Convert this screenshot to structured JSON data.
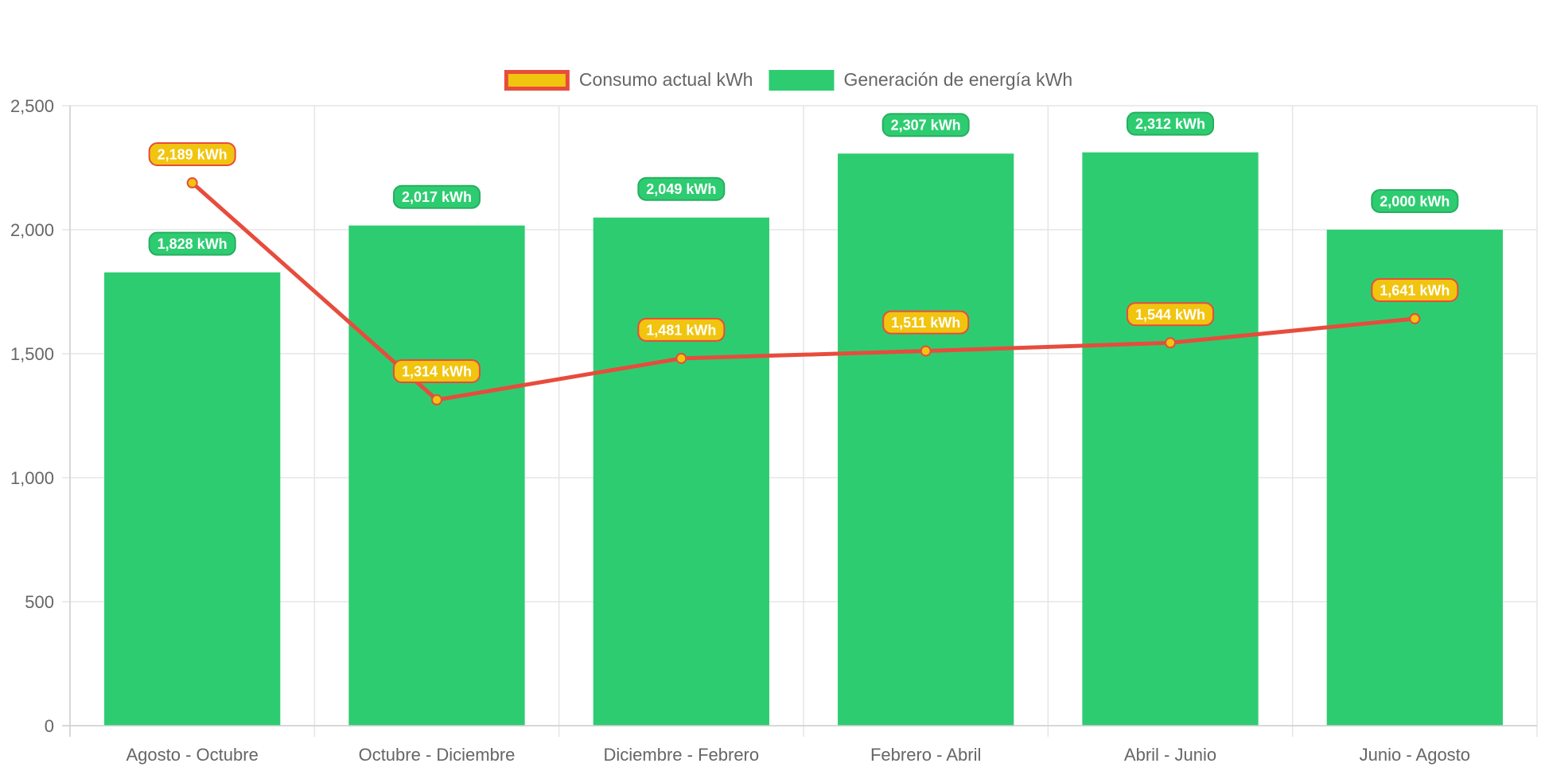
{
  "chart_data": {
    "type": "bar",
    "categories": [
      "Agosto - Octubre",
      "Octubre - Diciembre",
      "Diciembre - Febrero",
      "Febrero - Abril",
      "Abril - Junio",
      "Junio - Agosto"
    ],
    "series": [
      {
        "name": "Generación de energía kWh",
        "type": "bar",
        "values": [
          1828,
          2017,
          2049,
          2307,
          2312,
          2000
        ],
        "labels": [
          "1,828 kWh",
          "2,017 kWh",
          "2,049 kWh",
          "2,307 kWh",
          "2,312 kWh",
          "2,000 kWh"
        ],
        "color": "#2ecc71",
        "label_border": "#27ae60"
      },
      {
        "name": "Consumo actual kWh",
        "type": "line",
        "values": [
          2189,
          1314,
          1481,
          1511,
          1544,
          1641
        ],
        "labels": [
          "2,189 kWh",
          "1,314 kWh",
          "1,481 kWh",
          "1,511 kWh",
          "1,544 kWh",
          "1,641 kWh"
        ],
        "color": "#e74c3c",
        "point_color": "#f1c40f"
      }
    ],
    "legend": [
      {
        "label": "Consumo actual kWh",
        "fill": "#f1c40f",
        "stroke": "#e74c3c"
      },
      {
        "label": "Generación de energía kWh",
        "fill": "#2ecc71",
        "stroke": "#2ecc71"
      }
    ],
    "legend_position": "top",
    "ylim": [
      0,
      2500
    ],
    "yticks": [
      0,
      500,
      1000,
      1500,
      2000,
      2500
    ],
    "ytick_labels": [
      "0",
      "500",
      "1,000",
      "1,500",
      "2,000",
      "2,500"
    ],
    "grid": true,
    "title": "",
    "xlabel": "",
    "ylabel": ""
  }
}
